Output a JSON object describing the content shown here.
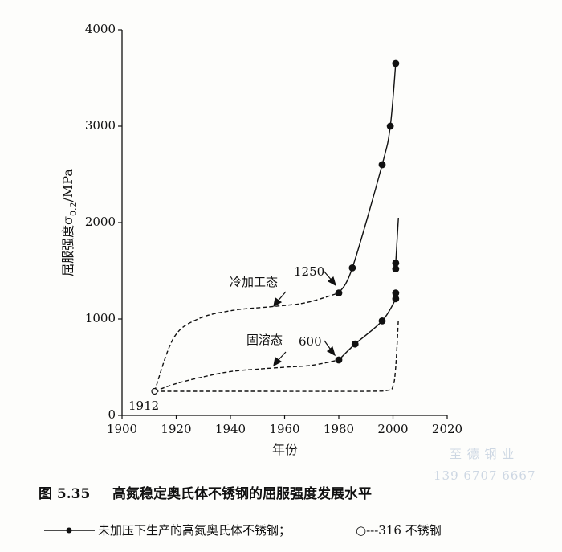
{
  "chart_data": {
    "type": "line",
    "xlim": [
      1900,
      2020
    ],
    "xticks": [
      1900,
      1920,
      1940,
      1960,
      1980,
      2000,
      2020
    ],
    "ylim": [
      0,
      4000
    ],
    "yticks": [
      0,
      1000,
      2000,
      3000,
      4000
    ],
    "x_label": "年份",
    "y_label_parts": [
      "屈服强度σ",
      "0.2",
      "/MPa"
    ],
    "color": "#111111",
    "series": [
      {
        "style": "dashed",
        "marker": "none",
        "x": [
          1912,
          1919,
          1928,
          1941,
          1956,
          1968,
          1980
        ],
        "values": [
          250,
          800,
          1000,
          1090,
          1130,
          1170,
          1270
        ]
      },
      {
        "style": "solid",
        "marker": "filled",
        "x": [
          1980,
          1985,
          1996,
          1999,
          2001
        ],
        "values": [
          1270,
          1530,
          2600,
          3000,
          3650
        ]
      },
      {
        "style": "dashed",
        "marker": "none",
        "x": [
          1912,
          1920,
          1930,
          1940,
          1950,
          1960,
          1970,
          1980
        ],
        "values": [
          250,
          330,
          400,
          455,
          480,
          500,
          520,
          575
        ]
      },
      {
        "style": "solid",
        "marker": "filled",
        "x": [
          1980,
          1986,
          1996,
          2001,
          2001
        ],
        "values": [
          575,
          740,
          980,
          1210,
          1270
        ]
      },
      {
        "style": "solid",
        "marker": "filled",
        "x": [
          2001,
          2001
        ],
        "values": [
          1520,
          1580
        ]
      },
      {
        "style": "solid",
        "marker": "none",
        "x": [
          2001,
          2002
        ],
        "values": [
          1580,
          2050
        ]
      },
      {
        "style": "dashed",
        "marker": "none",
        "x": [
          1912,
          1950,
          1990,
          1998,
          2000,
          2001,
          2002
        ],
        "values": [
          250,
          250,
          250,
          260,
          300,
          500,
          1000
        ]
      },
      {
        "style": "none",
        "marker": "open",
        "x": [
          1912
        ],
        "values": [
          250
        ]
      }
    ],
    "annotations": [
      "冷加工态",
      "1250",
      "固溶态",
      "600",
      "1912"
    ]
  },
  "caption": {
    "number": "图 5.35",
    "title": "高氮稳定奥氏体不锈钢的屈服强度发展水平"
  },
  "legend": {
    "solid": "未加压下生产的高氮奥氏体不锈钢；",
    "dashed": "○---316 不锈钢"
  },
  "watermark": {
    "name": "至 德 钢 业",
    "phone": "139 6707 6667"
  }
}
